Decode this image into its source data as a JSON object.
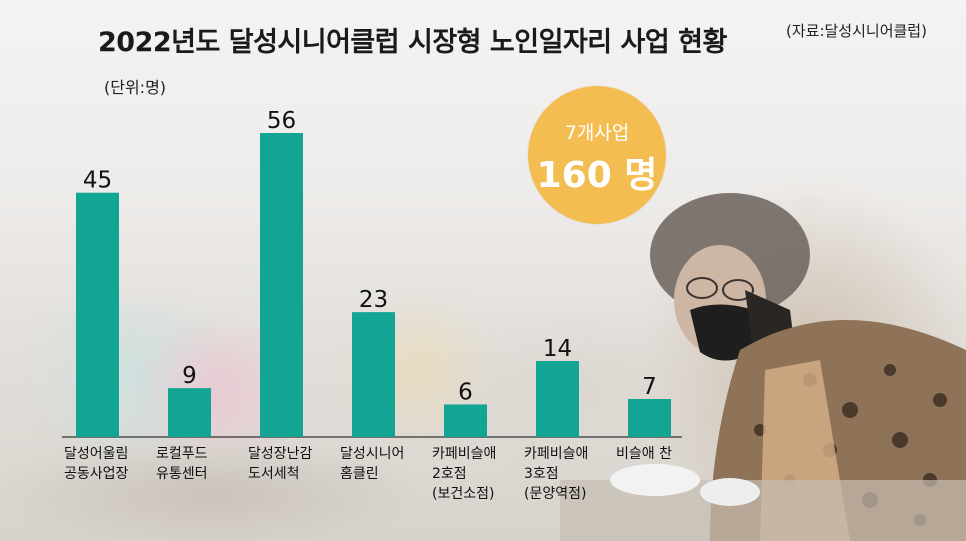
{
  "title": "2022년도 달성시니어클럽 시장형 노인일자리 사업 현황",
  "source": "(자료:달성시니어클럽)",
  "unit": "(단위:명)",
  "badge": {
    "sub": "7개사업",
    "main": "160 명",
    "color": "#f3bd52"
  },
  "colors": {
    "bar": "#12a593",
    "axis": "#333333"
  },
  "chart_data": {
    "type": "bar",
    "title": "2022년도 달성시니어클럽 시장형 노인일자리 사업 현황",
    "unit": "(단위:명)",
    "categories": [
      [
        "달성어울림",
        "공동사업장"
      ],
      [
        "로컬푸드",
        "유통센터"
      ],
      [
        "달성장난감",
        "도서세척"
      ],
      [
        "달성시니어",
        "홈클린"
      ],
      [
        "카페비슬애",
        "2호점",
        "(보건소점)"
      ],
      [
        "카페비슬애",
        "3호점",
        "(문양역점)"
      ],
      [
        "비슬애 찬"
      ]
    ],
    "values": [
      45,
      9,
      56,
      23,
      6,
      14,
      7
    ],
    "ylim": [
      0,
      56
    ],
    "grid": false,
    "xlabel": "",
    "ylabel": ""
  }
}
